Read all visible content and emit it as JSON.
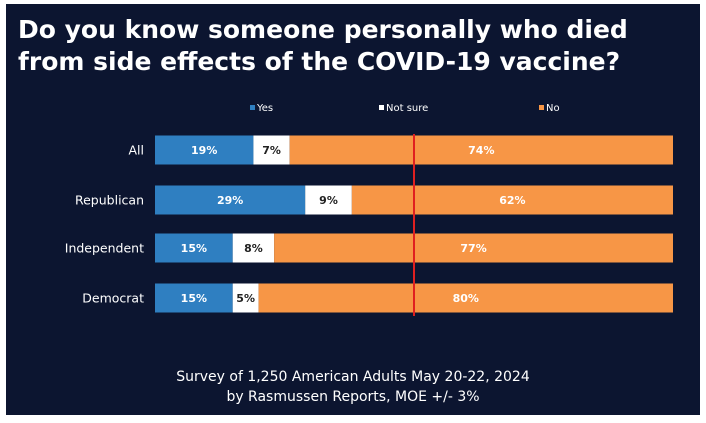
{
  "title": "Do you know someone personally who died from side effects of the COVID-19 vaccine?",
  "footer": {
    "line1": "Survey of 1,250 American Adults May 20-22, 2024",
    "line2": "by Rasmussen Reports, MOE +/- 3%"
  },
  "colors": {
    "background": "#0c1530",
    "yes": "#2f7fc1",
    "not_sure": "#ffffff",
    "no": "#f79646",
    "reference_line": "#e02020"
  },
  "chart_data": {
    "type": "bar",
    "orientation": "horizontal",
    "stacked": true,
    "categories": [
      "All",
      "Republican",
      "Independent",
      "Democrat"
    ],
    "series": [
      {
        "name": "Yes",
        "values": [
          19,
          29,
          15,
          15
        ],
        "labels": [
          "19%",
          "29%",
          "15%",
          "15%"
        ]
      },
      {
        "name": "Not sure",
        "values": [
          7,
          9,
          8,
          5
        ],
        "labels": [
          "7%",
          "9%",
          "8%",
          "5%"
        ]
      },
      {
        "name": "No",
        "values": [
          74,
          62,
          77,
          80
        ],
        "labels": [
          "74%",
          "62%",
          "77%",
          "80%"
        ]
      }
    ],
    "xlim": [
      0,
      100
    ],
    "reference_line": 50,
    "legend": "top",
    "grid": false
  }
}
